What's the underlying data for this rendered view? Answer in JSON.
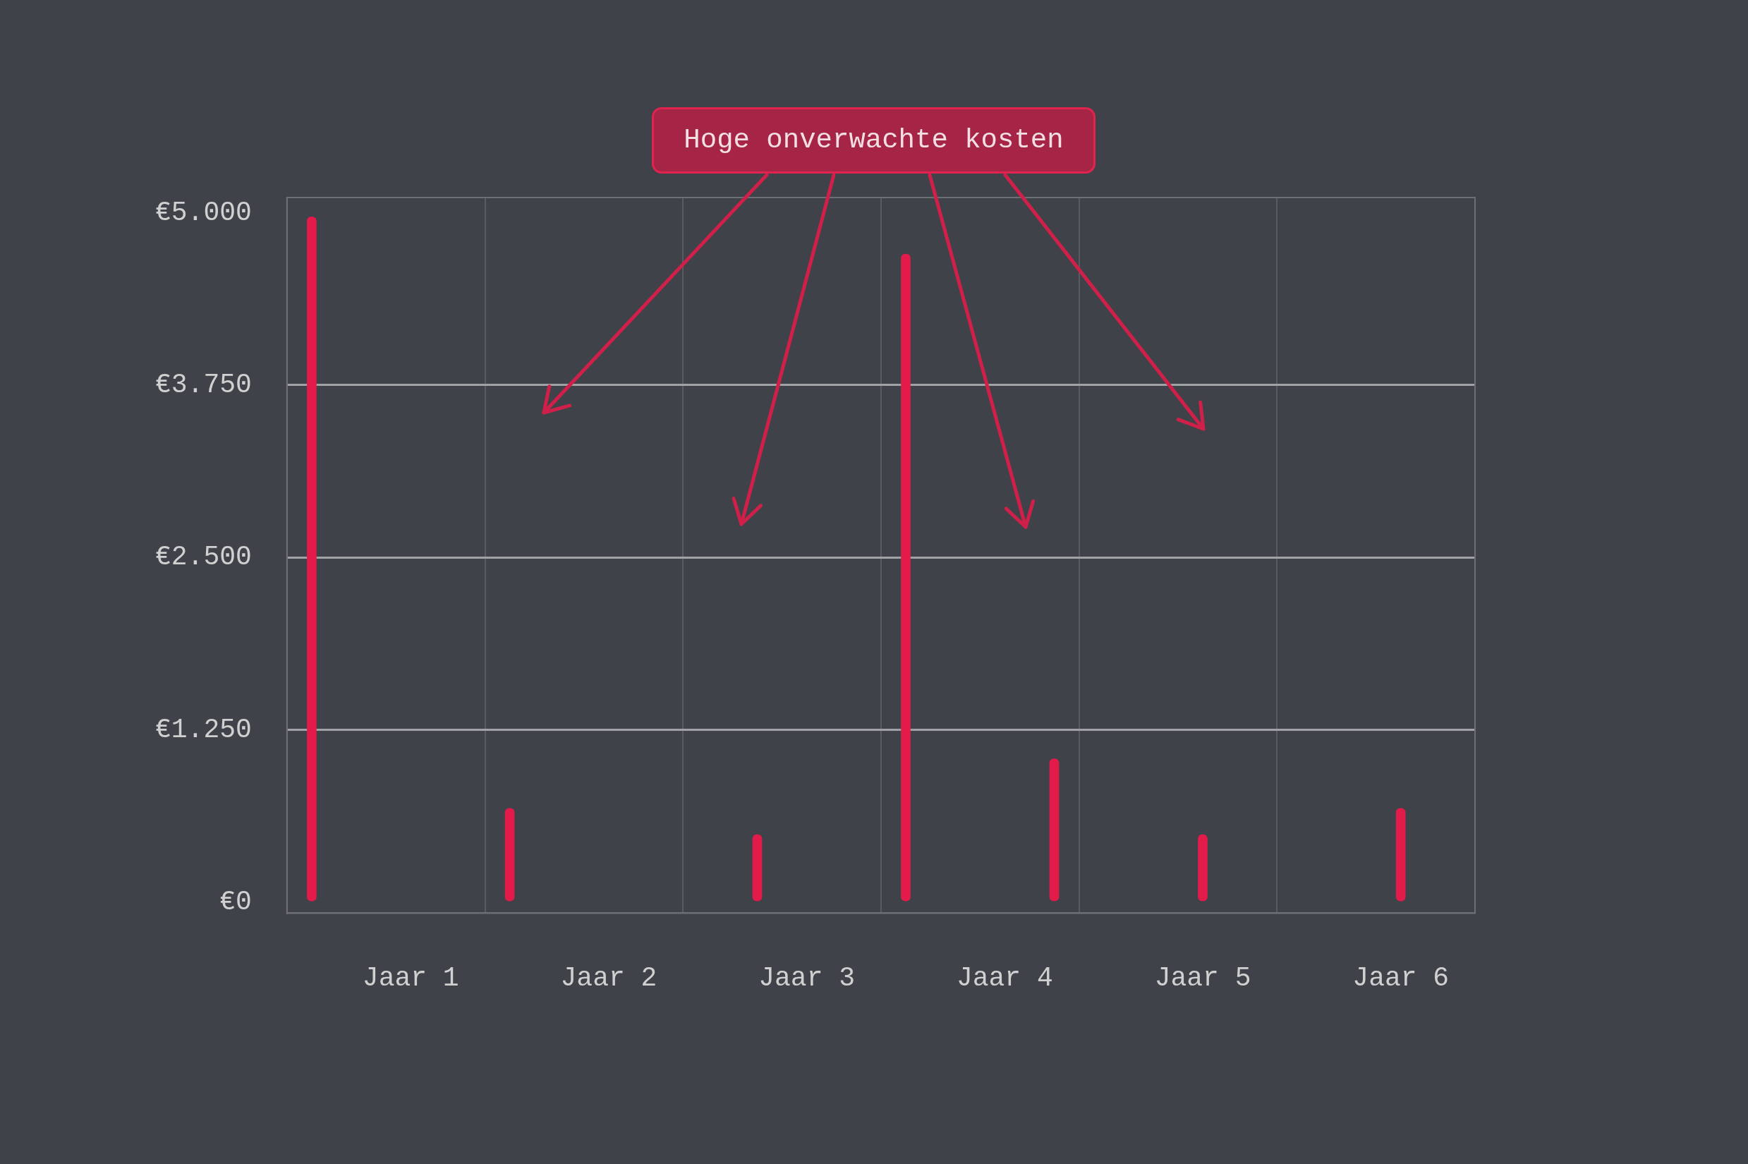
{
  "chart_data": {
    "type": "bar",
    "categories": [
      null,
      null,
      "Jaar 1",
      null,
      null,
      null,
      "Jaar 2",
      null,
      null,
      null,
      "Jaar 3",
      null,
      null,
      null,
      "Jaar 4",
      null,
      null,
      null,
      "Jaar 5",
      null,
      null,
      null,
      "Jaar 6",
      null
    ],
    "values": [
      4970,
      null,
      null,
      null,
      680,
      null,
      null,
      null,
      null,
      490,
      null,
      null,
      4700,
      null,
      null,
      1040,
      null,
      null,
      490,
      null,
      null,
      null,
      680,
      null
    ],
    "color": "#e31b4b",
    "ylim": [
      -80,
      5110
    ],
    "yticks": [
      {
        "value": 0,
        "label": "€0"
      },
      {
        "value": 1250,
        "label": "€1.250"
      },
      {
        "value": 2500,
        "label": "€2.500"
      },
      {
        "value": 3750,
        "label": "€3.750"
      },
      {
        "value": 5000,
        "label": "€5.000"
      }
    ],
    "grid": true,
    "annotations": [
      "Hoge onverwachte kosten"
    ]
  }
}
